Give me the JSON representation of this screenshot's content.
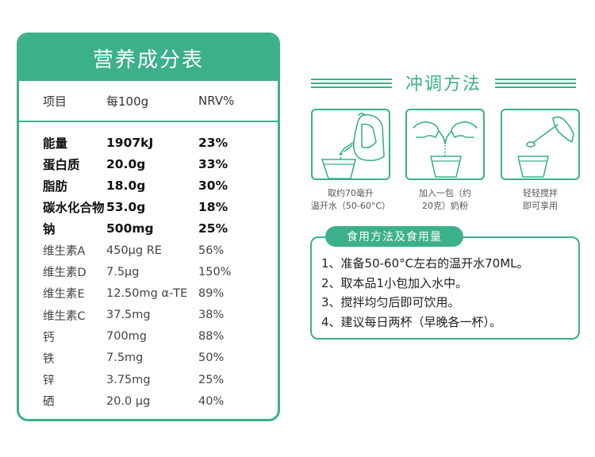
{
  "nutrition": {
    "title": "营养成分表",
    "headers": {
      "item": "项目",
      "per100g": "每100g",
      "nrv": "NRV%"
    },
    "rows": [
      {
        "name": "能量",
        "value": "1907kJ",
        "nrv": "23%",
        "bold": true
      },
      {
        "name": "蛋白质",
        "value": "20.0g",
        "nrv": "33%",
        "bold": true
      },
      {
        "name": "脂肪",
        "value": "18.0g",
        "nrv": "30%",
        "bold": true
      },
      {
        "name": "碳水化合物",
        "value": "53.0g",
        "nrv": "18%",
        "bold": true
      },
      {
        "name": "钠",
        "value": "500mg",
        "nrv": "25%",
        "bold": true
      },
      {
        "name": "维生素A",
        "value": "450μg RE",
        "nrv": "56%",
        "bold": false
      },
      {
        "name": "维生素D",
        "value": "7.5μg",
        "nrv": "150%",
        "bold": false
      },
      {
        "name": "维生素E",
        "value": "12.50mg α-TE",
        "nrv": "89%",
        "bold": false
      },
      {
        "name": "维生素C",
        "value": "37.5mg",
        "nrv": "38%",
        "bold": false
      },
      {
        "name": "钙",
        "value": "700mg",
        "nrv": "88%",
        "bold": false
      },
      {
        "name": "铁",
        "value": "7.5mg",
        "nrv": "50%",
        "bold": false
      },
      {
        "name": "锌",
        "value": "3.75mg",
        "nrv": "25%",
        "bold": false
      },
      {
        "name": "硒",
        "value": "20.0 μg",
        "nrv": "40%",
        "bold": false
      }
    ]
  },
  "method": {
    "title": "冲调方法",
    "steps": [
      {
        "line1": "取约70毫升",
        "line2": "温开水（50-60°C）",
        "icon": "kettle-pour-icon"
      },
      {
        "line1": "加入一包（约",
        "line2": "20克）奶粉",
        "icon": "add-powder-icon"
      },
      {
        "line1": "轻轻搅拌",
        "line2": "即可享用",
        "icon": "stir-spoon-icon"
      }
    ]
  },
  "usage": {
    "title": "食用方法及食用量",
    "items": [
      "1、准备50-60°C左右的温开水70ML。",
      "2、取本品1小包加入水中。",
      "3、搅拌均匀后即可饮用。",
      "4、建议每日两杯（早晚各一杯）。"
    ]
  },
  "colors": {
    "accent": "#3cb08a"
  }
}
